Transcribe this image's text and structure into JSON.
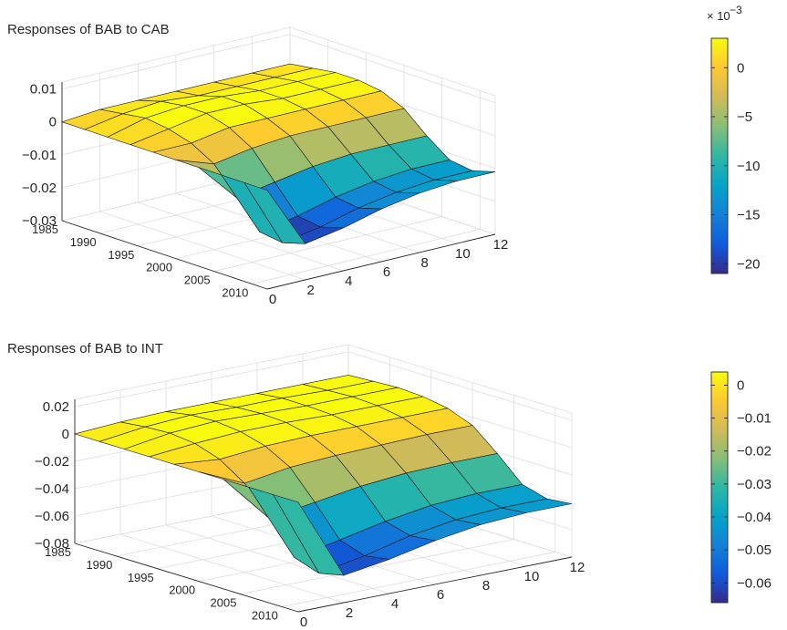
{
  "chart_data": [
    {
      "type": "surface",
      "title": "Responses of BAB to CAB",
      "xlabel": "",
      "ylabel": "",
      "zlabel": "",
      "x_ticks": [
        1985,
        1990,
        1995,
        2000,
        2005,
        2010
      ],
      "y_ticks": [
        0,
        2,
        4,
        6,
        8,
        10,
        12
      ],
      "z_ticks": [
        {
          "value": 0.01,
          "label": "0.01"
        },
        {
          "value": 0,
          "label": "0"
        },
        {
          "value": -0.01,
          "label": "−0.01"
        },
        {
          "value": -0.02,
          "label": "−0.02"
        },
        {
          "value": -0.03,
          "label": "−0.03"
        }
      ],
      "xlim": [
        1985,
        2012
      ],
      "ylim": [
        0,
        12
      ],
      "zlim": [
        -0.03,
        0.01
      ],
      "grid": true,
      "colorbar": {
        "multiplier_label": "× 10",
        "multiplier_exponent": "−3",
        "range": [
          -21,
          3
        ],
        "ticks": [
          {
            "value": 0,
            "label": "0"
          },
          {
            "value": -5,
            "label": "−5"
          },
          {
            "value": -10,
            "label": "−10"
          },
          {
            "value": -15,
            "label": "−15"
          },
          {
            "value": -20,
            "label": "−20"
          }
        ]
      },
      "surface": {
        "years": [
          1985,
          1988,
          1991,
          1994,
          1997,
          2000,
          2003,
          2006,
          2009,
          2012
        ],
        "horizons": [
          0,
          2,
          4,
          6,
          8,
          10,
          12
        ],
        "z": [
          [
            0,
            0.001,
            0.001,
            0.001,
            0.001,
            0.001,
            0.001
          ],
          [
            0,
            0.002,
            0.003,
            0.002,
            0.002,
            0.002,
            0.002
          ],
          [
            0,
            0.003,
            0.004,
            0.004,
            0.003,
            0.003,
            0.003
          ],
          [
            0,
            0.002,
            0.004,
            0.004,
            0.003,
            0.003,
            0.003
          ],
          [
            0,
            0.0,
            0.002,
            0.002,
            0.002,
            0.002,
            0.002
          ],
          [
            0,
            -0.004,
            -0.002,
            -0.001,
            -0.001,
            -0.001,
            -0.001
          ],
          [
            0,
            -0.012,
            -0.01,
            -0.008,
            -0.007,
            -0.007,
            -0.007
          ],
          [
            0,
            -0.02,
            -0.018,
            -0.015,
            -0.013,
            -0.012,
            -0.012
          ],
          [
            0,
            -0.021,
            -0.019,
            -0.016,
            -0.014,
            -0.013,
            -0.013
          ],
          [
            0,
            -0.019,
            -0.017,
            -0.014,
            -0.012,
            -0.011,
            -0.011
          ]
        ]
      }
    },
    {
      "type": "surface",
      "title": "Responses of BAB to INT",
      "xlabel": "",
      "ylabel": "",
      "zlabel": "",
      "x_ticks": [
        1985,
        1990,
        1995,
        2000,
        2005,
        2010
      ],
      "y_ticks": [
        0,
        2,
        4,
        6,
        8,
        10,
        12
      ],
      "z_ticks": [
        {
          "value": 0.02,
          "label": "0.02"
        },
        {
          "value": 0,
          "label": "0"
        },
        {
          "value": -0.02,
          "label": "−0.02"
        },
        {
          "value": -0.04,
          "label": "−0.04"
        },
        {
          "value": -0.06,
          "label": "−0.06"
        },
        {
          "value": -0.08,
          "label": "−0.08"
        }
      ],
      "xlim": [
        1985,
        2012
      ],
      "ylim": [
        0,
        12
      ],
      "zlim": [
        -0.08,
        0.02
      ],
      "grid": true,
      "colorbar": {
        "range": [
          -0.066,
          0.004
        ],
        "ticks": [
          {
            "value": 0,
            "label": "0"
          },
          {
            "value": -0.01,
            "label": "−0.01"
          },
          {
            "value": -0.02,
            "label": "−0.02"
          },
          {
            "value": -0.03,
            "label": "−0.03"
          },
          {
            "value": -0.04,
            "label": "−0.04"
          },
          {
            "value": -0.05,
            "label": "−0.05"
          },
          {
            "value": -0.06,
            "label": "−0.06"
          }
        ]
      },
      "surface": {
        "years": [
          1985,
          1988,
          1991,
          1994,
          1997,
          2000,
          2003,
          2006,
          2009,
          2012
        ],
        "horizons": [
          0,
          2,
          4,
          6,
          8,
          10,
          12
        ],
        "z": [
          [
            0,
            0.002,
            0.003,
            0.003,
            0.003,
            0.003,
            0.003
          ],
          [
            0,
            0.004,
            0.006,
            0.005,
            0.005,
            0.004,
            0.004
          ],
          [
            0,
            0.005,
            0.007,
            0.006,
            0.005,
            0.005,
            0.005
          ],
          [
            0,
            0.003,
            0.005,
            0.005,
            0.004,
            0.004,
            0.004
          ],
          [
            0,
            -0.003,
            0.0,
            0.001,
            0.001,
            0.001,
            0.001
          ],
          [
            0,
            -0.015,
            -0.01,
            -0.008,
            -0.007,
            -0.006,
            -0.006
          ],
          [
            0,
            -0.035,
            -0.03,
            -0.025,
            -0.022,
            -0.021,
            -0.021
          ],
          [
            0,
            -0.058,
            -0.052,
            -0.045,
            -0.04,
            -0.038,
            -0.038
          ],
          [
            0,
            -0.064,
            -0.058,
            -0.05,
            -0.045,
            -0.043,
            -0.043
          ],
          [
            0,
            -0.06,
            -0.055,
            -0.048,
            -0.043,
            -0.041,
            -0.041
          ]
        ]
      }
    }
  ]
}
